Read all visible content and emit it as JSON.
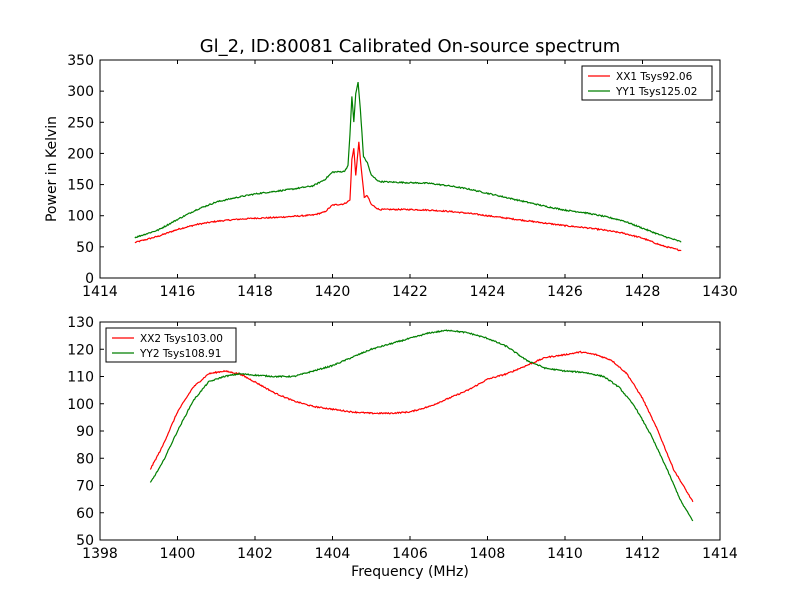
{
  "figure": {
    "title": "Gl_2, ID:80081 Calibrated On-source spectrum",
    "xlabel": "Frequency (MHz)",
    "ylabel_top": "Power in Kelvin"
  },
  "colors": {
    "red": "#ff0000",
    "green": "#007f00"
  },
  "chart_data": [
    {
      "type": "line",
      "title": "Gl_2, ID:80081 Calibrated On-source spectrum",
      "xlabel": "",
      "ylabel": "Power in Kelvin",
      "xlim": [
        1414,
        1430
      ],
      "ylim": [
        0,
        350
      ],
      "xticks": [
        1414,
        1416,
        1418,
        1420,
        1422,
        1424,
        1426,
        1428,
        1430
      ],
      "yticks": [
        0,
        50,
        100,
        150,
        200,
        250,
        300,
        350
      ],
      "grid": false,
      "legend": "top-right",
      "series": [
        {
          "name": "XX1 Tsys92.06",
          "color": "#ff0000",
          "points": [
            [
              1414.9,
              57
            ],
            [
              1415.5,
              67
            ],
            [
              1416,
              78
            ],
            [
              1416.5,
              86
            ],
            [
              1417,
              91
            ],
            [
              1417.5,
              94
            ],
            [
              1418,
              96
            ],
            [
              1418.5,
              97
            ],
            [
              1419,
              99
            ],
            [
              1419.5,
              101
            ],
            [
              1419.8,
              106
            ],
            [
              1420.0,
              117
            ],
            [
              1420.3,
              119
            ],
            [
              1420.45,
              125
            ],
            [
              1420.5,
              190
            ],
            [
              1420.55,
              208
            ],
            [
              1420.6,
              165
            ],
            [
              1420.68,
              218
            ],
            [
              1420.75,
              170
            ],
            [
              1420.82,
              130
            ],
            [
              1420.9,
              132
            ],
            [
              1421.0,
              118
            ],
            [
              1421.2,
              110
            ],
            [
              1421.5,
              110
            ],
            [
              1422,
              110
            ],
            [
              1422.5,
              109
            ],
            [
              1423,
              107
            ],
            [
              1423.5,
              104
            ],
            [
              1424,
              100
            ],
            [
              1424.5,
              96
            ],
            [
              1425,
              92
            ],
            [
              1425.5,
              88
            ],
            [
              1426,
              84
            ],
            [
              1426.5,
              81
            ],
            [
              1427,
              77
            ],
            [
              1427.5,
              72
            ],
            [
              1428,
              64
            ],
            [
              1428.5,
              52
            ],
            [
              1429,
              44
            ]
          ]
        },
        {
          "name": "YY1 Tsys125.02",
          "color": "#007f00",
          "points": [
            [
              1414.9,
              65
            ],
            [
              1415.5,
              77
            ],
            [
              1416,
              94
            ],
            [
              1416.5,
              110
            ],
            [
              1417,
              122
            ],
            [
              1417.5,
              129
            ],
            [
              1418,
              135
            ],
            [
              1418.5,
              139
            ],
            [
              1419,
              143
            ],
            [
              1419.5,
              148
            ],
            [
              1419.8,
              158
            ],
            [
              1420.0,
              170
            ],
            [
              1420.3,
              171
            ],
            [
              1420.4,
              180
            ],
            [
              1420.45,
              230
            ],
            [
              1420.5,
              292
            ],
            [
              1420.55,
              250
            ],
            [
              1420.6,
              296
            ],
            [
              1420.66,
              314
            ],
            [
              1420.72,
              270
            ],
            [
              1420.8,
              195
            ],
            [
              1420.9,
              185
            ],
            [
              1421.0,
              165
            ],
            [
              1421.2,
              155
            ],
            [
              1421.5,
              154
            ],
            [
              1422,
              153
            ],
            [
              1422.5,
              152
            ],
            [
              1423,
              148
            ],
            [
              1423.5,
              143
            ],
            [
              1424,
              136
            ],
            [
              1424.5,
              129
            ],
            [
              1425,
              122
            ],
            [
              1425.5,
              115
            ],
            [
              1426,
              109
            ],
            [
              1426.5,
              105
            ],
            [
              1427,
              99
            ],
            [
              1427.5,
              92
            ],
            [
              1428,
              80
            ],
            [
              1428.5,
              68
            ],
            [
              1429,
              58
            ]
          ]
        }
      ]
    },
    {
      "type": "line",
      "title": "",
      "xlabel": "Frequency (MHz)",
      "ylabel": "",
      "xlim": [
        1398,
        1414
      ],
      "ylim": [
        50,
        130
      ],
      "xticks": [
        1398,
        1400,
        1402,
        1404,
        1406,
        1408,
        1410,
        1412,
        1414
      ],
      "yticks": [
        50,
        60,
        70,
        80,
        90,
        100,
        110,
        120,
        130
      ],
      "grid": false,
      "legend": "top-left",
      "series": [
        {
          "name": "XX2 Tsys103.00",
          "color": "#ff0000",
          "points": [
            [
              1399.3,
              76
            ],
            [
              1399.6,
              84
            ],
            [
              1400,
              97
            ],
            [
              1400.4,
              106
            ],
            [
              1400.8,
              111
            ],
            [
              1401.2,
              112
            ],
            [
              1401.6,
              111
            ],
            [
              1402,
              108
            ],
            [
              1402.5,
              104
            ],
            [
              1403,
              101
            ],
            [
              1403.5,
              99
            ],
            [
              1404,
              98
            ],
            [
              1404.5,
              97
            ],
            [
              1405,
              96.5
            ],
            [
              1405.5,
              96.5
            ],
            [
              1406,
              97
            ],
            [
              1406.5,
              99
            ],
            [
              1407,
              102
            ],
            [
              1407.5,
              105
            ],
            [
              1408,
              109
            ],
            [
              1408.5,
              111
            ],
            [
              1409,
              114
            ],
            [
              1409.5,
              117
            ],
            [
              1410,
              118
            ],
            [
              1410.4,
              119
            ],
            [
              1410.8,
              118
            ],
            [
              1411.2,
              116
            ],
            [
              1411.6,
              111
            ],
            [
              1412,
              102
            ],
            [
              1412.4,
              90
            ],
            [
              1412.8,
              76
            ],
            [
              1413.3,
              64
            ]
          ]
        },
        {
          "name": "YY2 Tsys108.91",
          "color": "#007f00",
          "points": [
            [
              1399.3,
              71
            ],
            [
              1399.6,
              78
            ],
            [
              1400,
              90
            ],
            [
              1400.4,
              101
            ],
            [
              1400.8,
              108
            ],
            [
              1401.2,
              110
            ],
            [
              1401.6,
              111
            ],
            [
              1402,
              110.5
            ],
            [
              1402.5,
              110
            ],
            [
              1403,
              110
            ],
            [
              1403.5,
              112
            ],
            [
              1404,
              114
            ],
            [
              1404.5,
              117
            ],
            [
              1405,
              120
            ],
            [
              1405.5,
              122
            ],
            [
              1406,
              124
            ],
            [
              1406.5,
              126
            ],
            [
              1407,
              127
            ],
            [
              1407.5,
              126
            ],
            [
              1408,
              124
            ],
            [
              1408.5,
              121
            ],
            [
              1409,
              116
            ],
            [
              1409.5,
              113
            ],
            [
              1410,
              112
            ],
            [
              1410.5,
              111.5
            ],
            [
              1411,
              110
            ],
            [
              1411.4,
              106
            ],
            [
              1411.8,
              99
            ],
            [
              1412.2,
              89
            ],
            [
              1412.6,
              77
            ],
            [
              1413.0,
              64
            ],
            [
              1413.3,
              57
            ]
          ]
        }
      ]
    }
  ]
}
